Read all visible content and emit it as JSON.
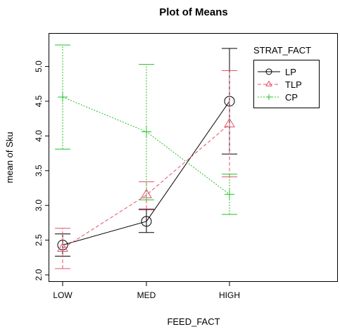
{
  "chart_data": {
    "type": "line",
    "title": "Plot of Means",
    "xlabel": "FEED_FACT",
    "ylabel": "mean of Sku",
    "categories": [
      "LOW",
      "MED",
      "HIGH"
    ],
    "ylim": [
      2.0,
      5.35
    ],
    "yticks": [
      "2.0",
      "2.5",
      "3.0",
      "3.5",
      "4.0",
      "4.5",
      "5.0"
    ],
    "legend": {
      "title": "STRAT_FACT",
      "position": "top-right"
    },
    "grid": false,
    "series": [
      {
        "name": "LP",
        "color": "#000000",
        "line_style": "solid",
        "marker": "circle",
        "values": [
          2.43,
          2.77,
          4.5
        ],
        "error_low": [
          2.27,
          2.61,
          3.74
        ],
        "error_high": [
          2.59,
          2.94,
          5.26
        ]
      },
      {
        "name": "TLP",
        "color": "#DF536B",
        "line_style": "dashed",
        "marker": "triangle",
        "values": [
          2.38,
          3.15,
          4.17
        ],
        "error_low": [
          2.09,
          2.95,
          3.41
        ],
        "error_high": [
          2.67,
          3.34,
          4.94
        ]
      },
      {
        "name": "CP",
        "color": "#22C022",
        "line_style": "dotted",
        "marker": "plus",
        "values": [
          4.56,
          4.06,
          3.16
        ],
        "error_low": [
          3.81,
          3.08,
          2.87
        ],
        "error_high": [
          5.31,
          5.03,
          3.45
        ]
      }
    ]
  }
}
